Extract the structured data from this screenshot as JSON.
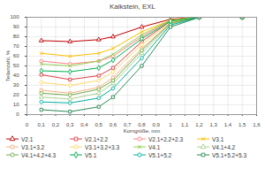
{
  "chart_data": {
    "type": "line",
    "title": "Kalkstein, EXL",
    "x_label": "Korngröße, mm",
    "y_label": "Teilanzahl, %",
    "x": [
      0.1,
      0.3,
      0.5,
      0.6,
      0.8,
      1.0,
      1.2,
      1.5
    ],
    "series": [
      {
        "name": "V2.1",
        "color": "#c00000",
        "marker": "triangle",
        "values": [
          76,
          75,
          77,
          80,
          90,
          98,
          100,
          100
        ]
      },
      {
        "name": "V2.1+2.2",
        "color": "#e0404a",
        "marker": "square",
        "values": [
          41,
          36,
          40,
          48,
          75,
          96,
          100,
          100
        ]
      },
      {
        "name": "V2.1+2.2+2.3",
        "color": "#ff8080",
        "marker": "circle",
        "values": [
          55,
          52,
          55,
          60,
          80,
          97,
          100,
          100
        ]
      },
      {
        "name": "V3.1",
        "color": "#ffc000",
        "marker": "times",
        "values": [
          63,
          60,
          63,
          68,
          85,
          97,
          100,
          100
        ]
      },
      {
        "name": "V3.1+3.2",
        "color": "#f4b183",
        "marker": "square",
        "values": [
          25,
          22,
          28,
          38,
          68,
          94,
          100,
          100
        ]
      },
      {
        "name": "V3.1+3.2+3.3",
        "color": "#ffd966",
        "marker": "circle",
        "values": [
          33,
          30,
          35,
          44,
          72,
          95,
          100,
          100
        ]
      },
      {
        "name": "V4.1",
        "color": "#92d050",
        "marker": "times",
        "values": [
          52,
          50,
          55,
          62,
          82,
          97,
          100,
          100
        ]
      },
      {
        "name": "V4.1+4.2",
        "color": "#a9d18e",
        "marker": "triangle",
        "values": [
          18,
          16,
          22,
          32,
          63,
          93,
          100,
          100
        ]
      },
      {
        "name": "V4.1+4.2+4.3",
        "color": "#70ad47",
        "marker": "circle",
        "values": [
          22,
          20,
          26,
          35,
          66,
          94,
          100,
          100
        ]
      },
      {
        "name": "V5.1",
        "color": "#00b050",
        "marker": "diamond",
        "values": [
          45,
          44,
          48,
          56,
          78,
          96,
          100,
          100
        ]
      },
      {
        "name": "V5.1+5.2",
        "color": "#00b0a0",
        "marker": "circle",
        "values": [
          13,
          12,
          17,
          27,
          58,
          92,
          100,
          100
        ]
      },
      {
        "name": "V5.1+5.2+5.3",
        "color": "#2e8b57",
        "marker": "square",
        "values": [
          5,
          3,
          8,
          18,
          50,
          90,
          100,
          100
        ]
      }
    ],
    "xlim": [
      0,
      1.6
    ],
    "xticks": [
      0,
      {
        "value": 0.1,
        "label": "0,1"
      },
      {
        "value": 0.2,
        "label": "0,2"
      },
      {
        "value": 0.3,
        "label": "0,3"
      },
      {
        "value": 0.4,
        "label": "0,4"
      },
      {
        "value": 0.5,
        "label": "0,5"
      },
      {
        "value": 0.6,
        "label": "0,6"
      },
      {
        "value": 0.7,
        "label": "0,7"
      },
      {
        "value": 0.8,
        "label": "0,8"
      },
      {
        "value": 0.9,
        "label": "0,9"
      },
      1,
      {
        "value": 1.1,
        "label": "1,1"
      },
      {
        "value": 1.2,
        "label": "1,2"
      },
      {
        "value": 1.3,
        "label": "1,3"
      },
      {
        "value": 1.4,
        "label": "1,4"
      },
      {
        "value": 1.5,
        "label": "1,5"
      },
      {
        "value": 1.6,
        "label": "1,6"
      }
    ],
    "ylim": [
      0,
      100
    ],
    "yticks": [
      0,
      10,
      20,
      30,
      40,
      50,
      60,
      70,
      80,
      90,
      100
    ],
    "grid": true,
    "legend": "bottom"
  }
}
